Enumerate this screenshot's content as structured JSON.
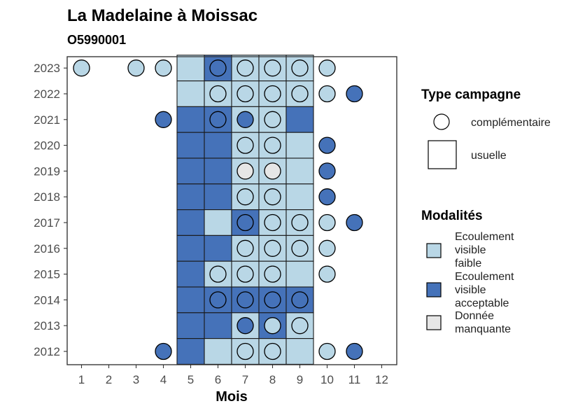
{
  "chart_data": {
    "type": "heatmap",
    "title": "La Madelaine à Moissac",
    "subtitle": "O5990001",
    "xlabel": "Mois",
    "ylabel": "",
    "x_ticks": [
      1,
      2,
      3,
      4,
      5,
      6,
      7,
      8,
      9,
      10,
      11,
      12
    ],
    "y_ticks": [
      2012,
      2013,
      2014,
      2015,
      2016,
      2017,
      2018,
      2019,
      2020,
      2021,
      2022,
      2023
    ],
    "colors": {
      "faible": "#b9d7e6",
      "acceptable": "#4572b9",
      "manquante": "#e6e6e6"
    },
    "legend_type": {
      "title": "Type campagne",
      "items": [
        {
          "key": "complementaire",
          "label": "complémentaire"
        },
        {
          "key": "usuelle",
          "label": "usuelle"
        }
      ]
    },
    "legend_modalites": {
      "title": "Modalités",
      "items": [
        {
          "key": "faible",
          "lines": [
            "Ecoulement",
            "visible",
            "faible"
          ]
        },
        {
          "key": "acceptable",
          "lines": [
            "Ecoulement",
            "visible",
            "acceptable"
          ]
        },
        {
          "key": "manquante",
          "lines": [
            "Donnée",
            "manquante"
          ]
        }
      ]
    },
    "usuelle_tiles": [
      {
        "year": 2023,
        "month": 5,
        "m": "faible"
      },
      {
        "year": 2023,
        "month": 6,
        "m": "acceptable"
      },
      {
        "year": 2023,
        "month": 7,
        "m": "faible"
      },
      {
        "year": 2023,
        "month": 8,
        "m": "faible"
      },
      {
        "year": 2023,
        "month": 9,
        "m": "faible"
      },
      {
        "year": 2022,
        "month": 5,
        "m": "faible"
      },
      {
        "year": 2022,
        "month": 6,
        "m": "faible"
      },
      {
        "year": 2022,
        "month": 7,
        "m": "faible"
      },
      {
        "year": 2022,
        "month": 8,
        "m": "faible"
      },
      {
        "year": 2022,
        "month": 9,
        "m": "faible"
      },
      {
        "year": 2021,
        "month": 5,
        "m": "acceptable"
      },
      {
        "year": 2021,
        "month": 6,
        "m": "acceptable"
      },
      {
        "year": 2021,
        "month": 7,
        "m": "faible"
      },
      {
        "year": 2021,
        "month": 8,
        "m": "faible"
      },
      {
        "year": 2021,
        "month": 9,
        "m": "acceptable"
      },
      {
        "year": 2020,
        "month": 5,
        "m": "acceptable"
      },
      {
        "year": 2020,
        "month": 6,
        "m": "acceptable"
      },
      {
        "year": 2020,
        "month": 7,
        "m": "faible"
      },
      {
        "year": 2020,
        "month": 8,
        "m": "faible"
      },
      {
        "year": 2020,
        "month": 9,
        "m": "faible"
      },
      {
        "year": 2019,
        "month": 5,
        "m": "acceptable"
      },
      {
        "year": 2019,
        "month": 6,
        "m": "acceptable"
      },
      {
        "year": 2019,
        "month": 7,
        "m": "faible"
      },
      {
        "year": 2019,
        "month": 8,
        "m": "faible"
      },
      {
        "year": 2019,
        "month": 9,
        "m": "faible"
      },
      {
        "year": 2018,
        "month": 5,
        "m": "acceptable"
      },
      {
        "year": 2018,
        "month": 6,
        "m": "acceptable"
      },
      {
        "year": 2018,
        "month": 7,
        "m": "faible"
      },
      {
        "year": 2018,
        "month": 8,
        "m": "faible"
      },
      {
        "year": 2018,
        "month": 9,
        "m": "faible"
      },
      {
        "year": 2017,
        "month": 5,
        "m": "acceptable"
      },
      {
        "year": 2017,
        "month": 6,
        "m": "faible"
      },
      {
        "year": 2017,
        "month": 7,
        "m": "acceptable"
      },
      {
        "year": 2017,
        "month": 8,
        "m": "faible"
      },
      {
        "year": 2017,
        "month": 9,
        "m": "faible"
      },
      {
        "year": 2016,
        "month": 5,
        "m": "acceptable"
      },
      {
        "year": 2016,
        "month": 6,
        "m": "acceptable"
      },
      {
        "year": 2016,
        "month": 7,
        "m": "faible"
      },
      {
        "year": 2016,
        "month": 8,
        "m": "faible"
      },
      {
        "year": 2016,
        "month": 9,
        "m": "faible"
      },
      {
        "year": 2015,
        "month": 5,
        "m": "acceptable"
      },
      {
        "year": 2015,
        "month": 6,
        "m": "faible"
      },
      {
        "year": 2015,
        "month": 7,
        "m": "faible"
      },
      {
        "year": 2015,
        "month": 8,
        "m": "faible"
      },
      {
        "year": 2015,
        "month": 9,
        "m": "faible"
      },
      {
        "year": 2014,
        "month": 5,
        "m": "acceptable"
      },
      {
        "year": 2014,
        "month": 6,
        "m": "acceptable"
      },
      {
        "year": 2014,
        "month": 7,
        "m": "acceptable"
      },
      {
        "year": 2014,
        "month": 8,
        "m": "acceptable"
      },
      {
        "year": 2014,
        "month": 9,
        "m": "acceptable"
      },
      {
        "year": 2013,
        "month": 5,
        "m": "acceptable"
      },
      {
        "year": 2013,
        "month": 6,
        "m": "acceptable"
      },
      {
        "year": 2013,
        "month": 7,
        "m": "faible"
      },
      {
        "year": 2013,
        "month": 8,
        "m": "acceptable"
      },
      {
        "year": 2013,
        "month": 9,
        "m": "faible"
      },
      {
        "year": 2012,
        "month": 5,
        "m": "acceptable"
      },
      {
        "year": 2012,
        "month": 6,
        "m": "faible"
      },
      {
        "year": 2012,
        "month": 7,
        "m": "faible"
      },
      {
        "year": 2012,
        "month": 8,
        "m": "faible"
      },
      {
        "year": 2012,
        "month": 9,
        "m": "faible"
      }
    ],
    "complementaire_points": [
      {
        "year": 2023,
        "month": 1,
        "m": "faible"
      },
      {
        "year": 2023,
        "month": 3,
        "m": "faible"
      },
      {
        "year": 2023,
        "month": 4,
        "m": "faible"
      },
      {
        "year": 2023,
        "month": 6,
        "m": "acceptable"
      },
      {
        "year": 2023,
        "month": 7,
        "m": "faible"
      },
      {
        "year": 2023,
        "month": 8,
        "m": "faible"
      },
      {
        "year": 2023,
        "month": 9,
        "m": "faible"
      },
      {
        "year": 2023,
        "month": 10,
        "m": "faible"
      },
      {
        "year": 2022,
        "month": 6,
        "m": "faible"
      },
      {
        "year": 2022,
        "month": 7,
        "m": "faible"
      },
      {
        "year": 2022,
        "month": 8,
        "m": "faible"
      },
      {
        "year": 2022,
        "month": 9,
        "m": "faible"
      },
      {
        "year": 2022,
        "month": 10,
        "m": "faible"
      },
      {
        "year": 2022,
        "month": 11,
        "m": "acceptable"
      },
      {
        "year": 2021,
        "month": 4,
        "m": "acceptable"
      },
      {
        "year": 2021,
        "month": 6,
        "m": "acceptable"
      },
      {
        "year": 2021,
        "month": 7,
        "m": "acceptable"
      },
      {
        "year": 2021,
        "month": 8,
        "m": "faible"
      },
      {
        "year": 2020,
        "month": 7,
        "m": "faible"
      },
      {
        "year": 2020,
        "month": 8,
        "m": "faible"
      },
      {
        "year": 2020,
        "month": 10,
        "m": "acceptable"
      },
      {
        "year": 2019,
        "month": 7,
        "m": "manquante"
      },
      {
        "year": 2019,
        "month": 8,
        "m": "manquante"
      },
      {
        "year": 2019,
        "month": 10,
        "m": "acceptable"
      },
      {
        "year": 2018,
        "month": 7,
        "m": "faible"
      },
      {
        "year": 2018,
        "month": 8,
        "m": "faible"
      },
      {
        "year": 2018,
        "month": 10,
        "m": "acceptable"
      },
      {
        "year": 2017,
        "month": 7,
        "m": "acceptable"
      },
      {
        "year": 2017,
        "month": 8,
        "m": "faible"
      },
      {
        "year": 2017,
        "month": 9,
        "m": "faible"
      },
      {
        "year": 2017,
        "month": 10,
        "m": "faible"
      },
      {
        "year": 2017,
        "month": 11,
        "m": "acceptable"
      },
      {
        "year": 2016,
        "month": 7,
        "m": "faible"
      },
      {
        "year": 2016,
        "month": 8,
        "m": "faible"
      },
      {
        "year": 2016,
        "month": 9,
        "m": "faible"
      },
      {
        "year": 2016,
        "month": 10,
        "m": "faible"
      },
      {
        "year": 2015,
        "month": 6,
        "m": "faible"
      },
      {
        "year": 2015,
        "month": 7,
        "m": "faible"
      },
      {
        "year": 2015,
        "month": 8,
        "m": "faible"
      },
      {
        "year": 2015,
        "month": 10,
        "m": "faible"
      },
      {
        "year": 2014,
        "month": 6,
        "m": "acceptable"
      },
      {
        "year": 2014,
        "month": 7,
        "m": "acceptable"
      },
      {
        "year": 2014,
        "month": 8,
        "m": "acceptable"
      },
      {
        "year": 2014,
        "month": 9,
        "m": "acceptable"
      },
      {
        "year": 2013,
        "month": 7,
        "m": "acceptable"
      },
      {
        "year": 2013,
        "month": 8,
        "m": "faible"
      },
      {
        "year": 2013,
        "month": 9,
        "m": "faible"
      },
      {
        "year": 2012,
        "month": 4,
        "m": "acceptable"
      },
      {
        "year": 2012,
        "month": 7,
        "m": "faible"
      },
      {
        "year": 2012,
        "month": 8,
        "m": "faible"
      },
      {
        "year": 2012,
        "month": 10,
        "m": "faible"
      },
      {
        "year": 2012,
        "month": 11,
        "m": "acceptable"
      }
    ]
  }
}
